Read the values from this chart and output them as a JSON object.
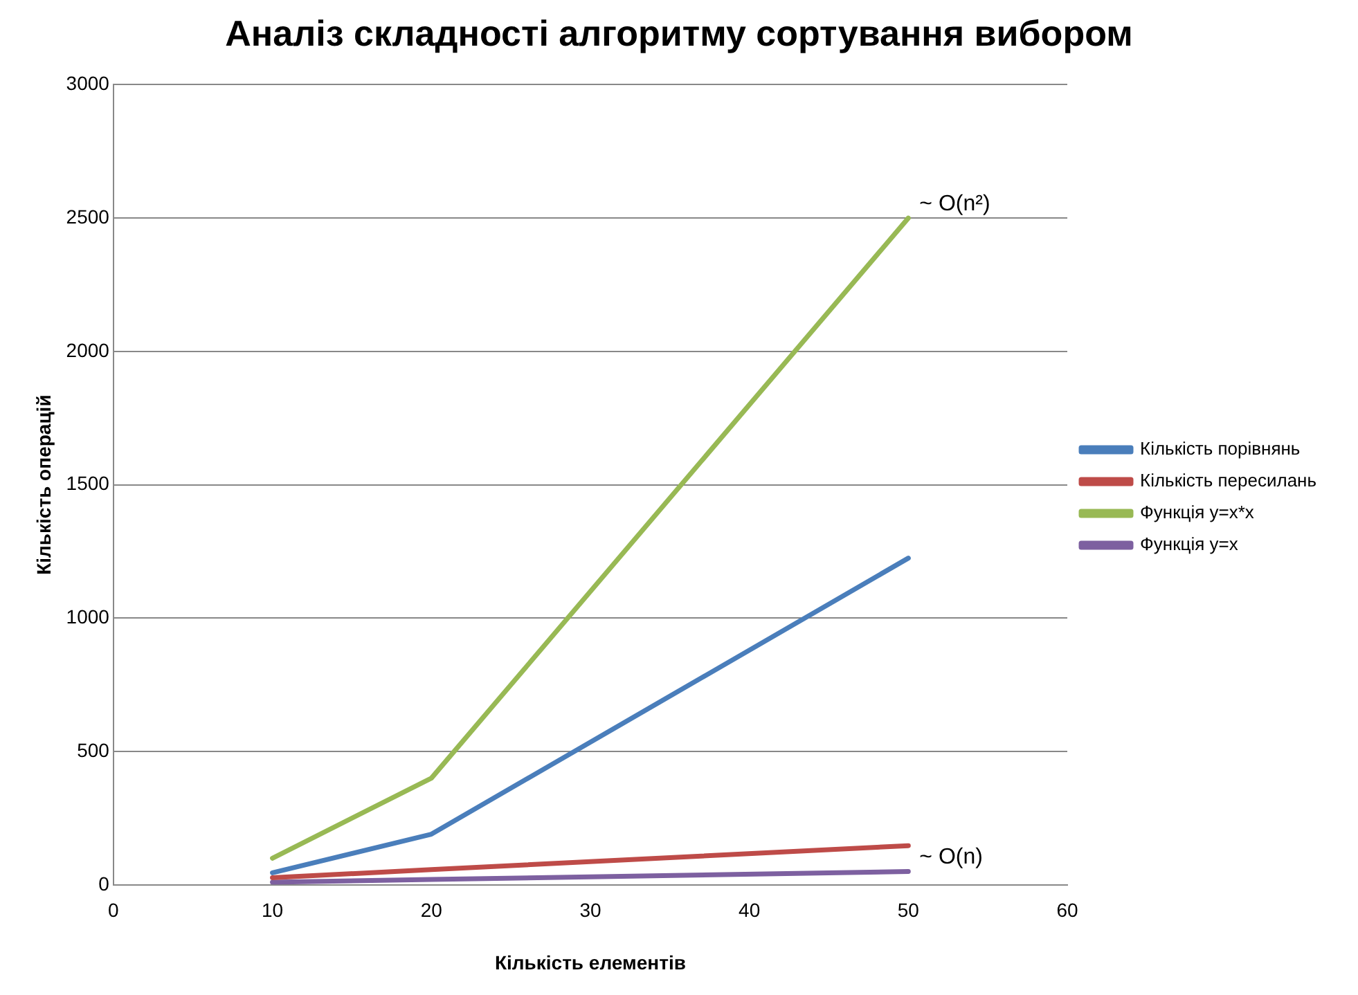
{
  "chart_data": {
    "type": "line",
    "title": "Аналіз складності алгоритму сортування вибором",
    "xlabel": "Кількість елементів",
    "ylabel": "Кількість операцій",
    "x": [
      10,
      20,
      50
    ],
    "series": [
      {
        "name": "Кількість порівнянь",
        "color": "#4a7ebb",
        "values": [
          45,
          190,
          1225
        ]
      },
      {
        "name": "Кількість пересилань",
        "color": "#be4b48",
        "values": [
          27,
          57,
          147
        ]
      },
      {
        "name": "Функція y=x*x",
        "color": "#98b954",
        "values": [
          100,
          400,
          2500
        ]
      },
      {
        "name": "Функція y=x",
        "color": "#7d60a0",
        "values": [
          10,
          20,
          50
        ]
      }
    ],
    "xlim": [
      0,
      60
    ],
    "xticks": [
      0,
      10,
      20,
      30,
      40,
      50,
      60
    ],
    "ylim": [
      0,
      3000
    ],
    "yticks": [
      0,
      500,
      1000,
      1500,
      2000,
      2500,
      3000
    ],
    "grid": "y",
    "legend": "right",
    "marker": "none",
    "line_style": "solid",
    "annotations": [
      {
        "text": "~ O(n²)",
        "x": 50,
        "y": 2500
      },
      {
        "text": "~ O(n)",
        "x": 50,
        "y": 50
      }
    ]
  }
}
